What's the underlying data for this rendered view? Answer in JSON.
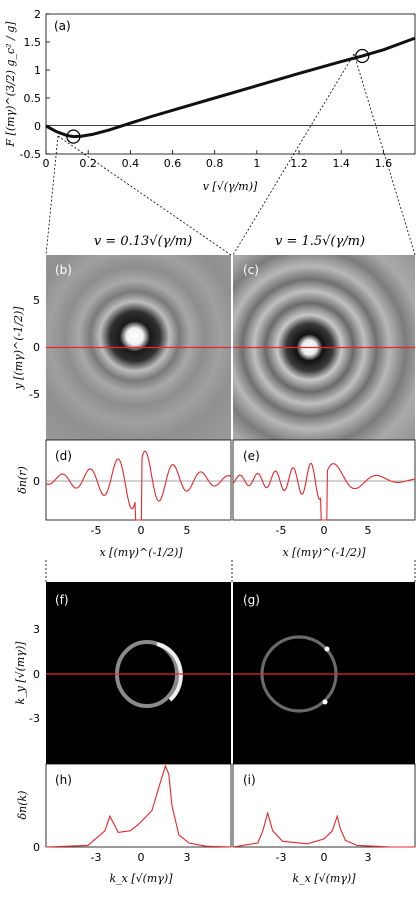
{
  "colors": {
    "curve": "#111111",
    "trace": "#e8262b",
    "axis": "#000000"
  },
  "headers": {
    "left": "v = 0.13√(γ/m)",
    "right": "v = 1.5√(γ/m)"
  },
  "chart_data": [
    {
      "panel": "(a)",
      "type": "line",
      "xlabel": "v [√(γ/m)]",
      "ylabel": "F [(mγ)^(3/2) g_c² / g]",
      "xlim": [
        0,
        1.75
      ],
      "ylim": [
        -0.5,
        2
      ],
      "xticks": [
        "0",
        "0.2",
        "0.4",
        "0.6",
        "0.8",
        "1",
        "1.2",
        "1.4",
        "1.6"
      ],
      "yticks": [
        "-0.5",
        "0",
        "0.5",
        "1",
        "1.5",
        "2"
      ],
      "x": [
        0,
        0.05,
        0.1,
        0.13,
        0.17,
        0.22,
        0.3,
        0.4,
        0.5,
        0.6,
        0.8,
        1.0,
        1.2,
        1.4,
        1.5,
        1.6,
        1.75
      ],
      "y": [
        0,
        -0.1,
        -0.17,
        -0.19,
        -0.18,
        -0.15,
        -0.07,
        0.05,
        0.17,
        0.28,
        0.5,
        0.72,
        0.94,
        1.15,
        1.25,
        1.36,
        1.57
      ],
      "markers": [
        {
          "x": 0.13,
          "y": -0.19
        },
        {
          "x": 1.5,
          "y": 1.25
        }
      ]
    },
    {
      "panel": "(b)",
      "type": "heatmap",
      "ylabel": "y [(mγ)^(-1/2)]",
      "yticks": [
        "5",
        "0",
        "-5"
      ]
    },
    {
      "panel": "(c)",
      "type": "heatmap"
    },
    {
      "panel": "(d)",
      "type": "line",
      "ylabel": "δn(r)",
      "xlabel": "x [(mγ)^(-1/2)]",
      "xlim": [
        -9.5,
        9.5
      ],
      "ylim": [
        -1,
        1
      ],
      "xticks": [
        "-5",
        "0",
        "5"
      ],
      "yticks": [
        "0"
      ]
    },
    {
      "panel": "(e)",
      "type": "line",
      "xlabel": "x [(mγ)^(-1/2)]",
      "xlim": [
        -9.5,
        9.5
      ],
      "ylim": [
        -1,
        1
      ],
      "xticks": [
        "-5",
        "0",
        "5"
      ]
    },
    {
      "panel": "(f)",
      "type": "heatmap",
      "ylabel": "k_y [√(mγ)]",
      "yticks": [
        "3",
        "0",
        "-3"
      ]
    },
    {
      "panel": "(g)",
      "type": "heatmap"
    },
    {
      "panel": "(h)",
      "type": "line",
      "ylabel": "δn(k)",
      "xlabel": "k_x [√(mγ)]",
      "xlim": [
        -5.5,
        5.5
      ],
      "ylim": [
        0,
        1
      ],
      "xticks": [
        "-3",
        "0",
        "3"
      ],
      "yticks": [
        "0"
      ],
      "x": [
        -5.5,
        -3,
        -2,
        -1.7,
        -1.2,
        -0.5,
        0,
        0.8,
        1.3,
        1.6,
        1.8,
        2.0,
        2.4,
        3,
        4,
        5.5
      ],
      "y": [
        0,
        0.02,
        0.2,
        0.38,
        0.18,
        0.2,
        0.28,
        0.45,
        0.8,
        1.0,
        0.9,
        0.5,
        0.15,
        0.05,
        0.01,
        0
      ]
    },
    {
      "panel": "(i)",
      "type": "line",
      "xlabel": "k_x [√(mγ)]",
      "xlim": [
        -5.5,
        5.5
      ],
      "ylim": [
        0,
        1
      ],
      "xticks": [
        "-3",
        "0",
        "3"
      ],
      "x": [
        -5.5,
        -4,
        -3.7,
        -3.4,
        -3.1,
        -2.5,
        -1,
        0,
        0.5,
        0.8,
        1.0,
        1.3,
        2,
        3,
        4,
        5.5
      ],
      "y": [
        0,
        0.05,
        0.2,
        0.42,
        0.2,
        0.07,
        0.04,
        0.1,
        0.2,
        0.38,
        0.22,
        0.08,
        0.02,
        0.01,
        0,
        0
      ]
    }
  ]
}
